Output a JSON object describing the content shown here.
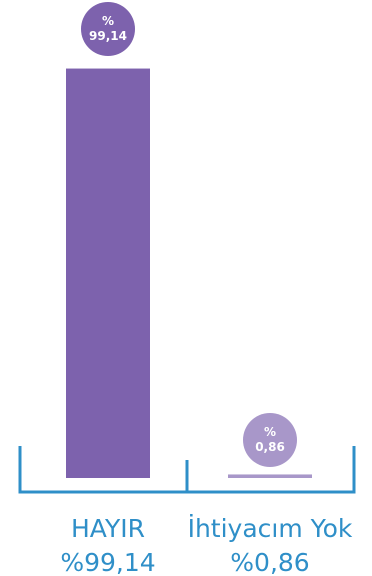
{
  "chart_data": {
    "type": "bar",
    "categories": [
      "HAYIR",
      "İhtiyacım Yok"
    ],
    "values": [
      99.14,
      0.86
    ],
    "value_labels": [
      "%\n99,14",
      "%\n0,86"
    ],
    "category_value_labels": [
      "%99,14",
      "%0,86"
    ],
    "ylim": [
      0,
      100
    ],
    "title": "",
    "xlabel": "",
    "ylabel": "",
    "grid": false,
    "colors": {
      "bars": [
        "#7d62ad",
        "#a897c9"
      ],
      "bubbles": [
        "#7d62ad",
        "#a897c9"
      ],
      "bubble_text": [
        "#ffffff",
        "#4a3a6a"
      ],
      "axis": "#2f8fc8",
      "labels": "#2f8fc8"
    }
  }
}
